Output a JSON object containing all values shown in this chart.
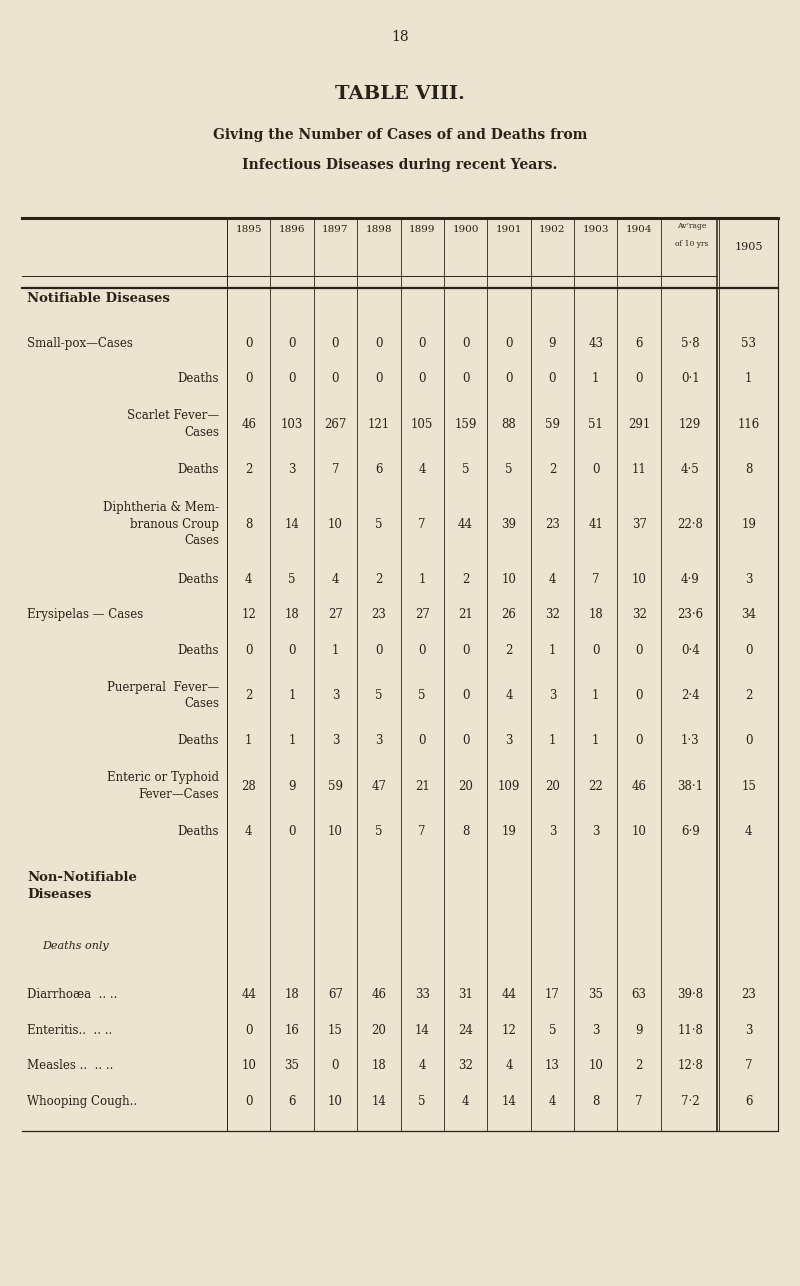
{
  "page_number": "18",
  "title": "TABLE VIII.",
  "subtitle_line1": "Giving the Number of Cases of and Deaths from",
  "subtitle_line2": "Infectious Diseases during recent Years.",
  "bg_color": "#EAE4D0",
  "text_color": "#2a2218",
  "col_headers": [
    "1895",
    "1896",
    "1897",
    "1898",
    "1899",
    "1900",
    "1901",
    "1902",
    "1903",
    "1904",
    "Av’rage\nof 10 yrs",
    "1905"
  ],
  "notifiable_header": "Notifiable Diseases",
  "non_notifiable_header": "Non-Notifiable\nDiseases",
  "deaths_only": "Deaths only",
  "rows": [
    {
      "label1": "Small-pox—Cases",
      "label2": null,
      "label3": null,
      "vals": [
        "0",
        "0",
        "0",
        "0",
        "0",
        "0",
        "0",
        "9",
        "43",
        "6",
        "5·8",
        "53"
      ]
    },
    {
      "label1": "Deaths",
      "label2": null,
      "label3": null,
      "right": true,
      "vals": [
        "0",
        "0",
        "0",
        "0",
        "0",
        "0",
        "0",
        "0",
        "1",
        "0",
        "0·1",
        "1"
      ]
    },
    {
      "label1": "Scarlet Fever—",
      "label2": "Cases",
      "label3": null,
      "right": true,
      "vals": [
        "46",
        "103",
        "267",
        "121",
        "105",
        "159",
        "88",
        "59",
        "51",
        "291",
        "129",
        "116"
      ]
    },
    {
      "label1": "Deaths",
      "label2": null,
      "label3": null,
      "right": true,
      "vals": [
        "2",
        "3",
        "7",
        "6",
        "4",
        "5",
        "5",
        "2",
        "0",
        "11",
        "4·5",
        "8"
      ]
    },
    {
      "label1": "Diphtheria & Mem-",
      "label2": "branous Croup",
      "label3": "Cases",
      "right": true,
      "vals": [
        "8",
        "14",
        "10",
        "5",
        "7",
        "44",
        "39",
        "23",
        "41",
        "37",
        "22·8",
        "19"
      ]
    },
    {
      "label1": "Deaths",
      "label2": null,
      "label3": null,
      "right": true,
      "vals": [
        "4",
        "5",
        "4",
        "2",
        "1",
        "2",
        "10",
        "4",
        "7",
        "10",
        "4·9",
        "3"
      ]
    },
    {
      "label1": "Erysipelas — Cases",
      "label2": null,
      "label3": null,
      "vals": [
        "12",
        "18",
        "27",
        "23",
        "27",
        "21",
        "26",
        "32",
        "18",
        "32",
        "23·6",
        "34"
      ]
    },
    {
      "label1": "Deaths",
      "label2": null,
      "label3": null,
      "right": true,
      "vals": [
        "0",
        "0",
        "1",
        "0",
        "0",
        "0",
        "2",
        "1",
        "0",
        "0",
        "0·4",
        "0"
      ]
    },
    {
      "label1": "Puerperal  Fever—",
      "label2": "Cases",
      "label3": null,
      "right": true,
      "vals": [
        "2",
        "1",
        "3",
        "5",
        "5",
        "0",
        "4",
        "3",
        "1",
        "0",
        "2·4",
        "2"
      ]
    },
    {
      "label1": "Deaths",
      "label2": null,
      "label3": null,
      "right": true,
      "vals": [
        "1",
        "1",
        "3",
        "3",
        "0",
        "0",
        "3",
        "1",
        "1",
        "0",
        "1·3",
        "0"
      ]
    },
    {
      "label1": "Enteric or Typhoid",
      "label2": "Fever—Cases",
      "label3": null,
      "right": true,
      "vals": [
        "28",
        "9",
        "59",
        "47",
        "21",
        "20",
        "109",
        "20",
        "22",
        "46",
        "38·1",
        "15"
      ]
    },
    {
      "label1": "Deaths",
      "label2": null,
      "label3": null,
      "right": true,
      "vals": [
        "4",
        "0",
        "10",
        "5",
        "7",
        "8",
        "19",
        "3",
        "3",
        "10",
        "6·9",
        "4"
      ]
    },
    {
      "label1": "Diarrhoæa  .. ..",
      "label2": null,
      "label3": null,
      "vals": [
        "44",
        "18",
        "67",
        "46",
        "33",
        "31",
        "44",
        "17",
        "35",
        "63",
        "39·8",
        "23"
      ]
    },
    {
      "label1": "Enteritis..  .. ..",
      "label2": null,
      "label3": null,
      "vals": [
        "0",
        "16",
        "15",
        "20",
        "14",
        "24",
        "12",
        "5",
        "3",
        "9",
        "11·8",
        "3"
      ]
    },
    {
      "label1": "Measles ..  .. ..",
      "label2": null,
      "label3": null,
      "vals": [
        "10",
        "35",
        "0",
        "18",
        "4",
        "32",
        "4",
        "13",
        "10",
        "2",
        "12·8",
        "7"
      ]
    },
    {
      "label1": "Whooping Cough..",
      "label2": null,
      "label3": null,
      "vals": [
        "0",
        "6",
        "10",
        "14",
        "5",
        "4",
        "14",
        "4",
        "8",
        "7",
        "7·2",
        "6"
      ]
    }
  ]
}
